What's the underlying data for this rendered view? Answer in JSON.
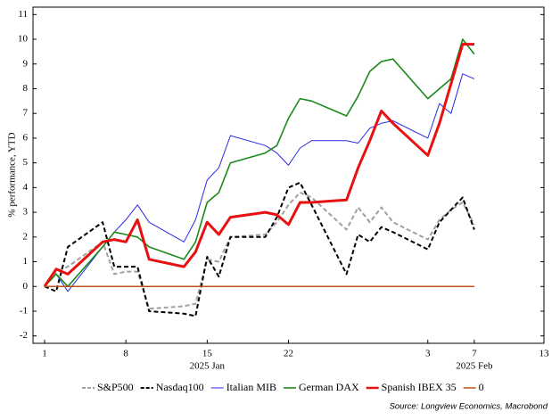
{
  "chart_data": {
    "type": "line",
    "ylabel": "% performance, YTD",
    "source": "Source: Longview Economics, Macrobond",
    "x": [
      1,
      2,
      3,
      6,
      7,
      8,
      9,
      10,
      13,
      14,
      15,
      16,
      17,
      20,
      21,
      22,
      23,
      24,
      27,
      28,
      29,
      30,
      31,
      34,
      35,
      36,
      37,
      38
    ],
    "xlim": [
      0,
      44
    ],
    "xticks": [
      1,
      8,
      15,
      22,
      {
        "value": 34,
        "label": "3"
      },
      {
        "value": 38,
        "label": "7"
      },
      {
        "value": 44,
        "label": "13"
      }
    ],
    "x_period_labels": [
      {
        "value": 15,
        "label": "2025 Jan"
      },
      {
        "value": 38,
        "label": "2025 Feb"
      }
    ],
    "ylim": [
      -2.3,
      11.3
    ],
    "yticks": [
      -2,
      -1,
      0,
      1,
      2,
      3,
      4,
      5,
      6,
      7,
      8,
      9,
      10,
      11
    ],
    "series": [
      {
        "name": "S&P500",
        "color": "#a0a0a0",
        "dashed": true,
        "linewidth": 2,
        "values": [
          0,
          0.6,
          0.8,
          1.8,
          0.5,
          0.6,
          0.6,
          -0.9,
          -0.8,
          -0.7,
          1.1,
          1.0,
          2.0,
          2.1,
          2.6,
          3.3,
          3.8,
          3.6,
          2.3,
          3.2,
          2.6,
          3.2,
          2.6,
          1.9,
          2.7,
          3.1,
          3.4,
          2.5
        ]
      },
      {
        "name": "Nasdaq100",
        "color": "#000000",
        "dashed": true,
        "linewidth": 2,
        "values": [
          0,
          -0.2,
          1.6,
          2.6,
          0.8,
          0.8,
          0.8,
          -1.0,
          -1.1,
          -1.2,
          1.2,
          0.4,
          2.0,
          2.0,
          2.8,
          4.0,
          4.2,
          3.3,
          0.5,
          2.1,
          1.8,
          2.4,
          2.2,
          1.5,
          2.6,
          3.1,
          3.6,
          2.3
        ]
      },
      {
        "name": "Italian MIB",
        "color": "#2a2ae8",
        "dashed": false,
        "linewidth": 1,
        "values": [
          0,
          0.5,
          -0.2,
          1.6,
          2.2,
          2.7,
          3.3,
          2.6,
          1.8,
          2.7,
          4.3,
          4.8,
          6.1,
          5.7,
          5.4,
          4.9,
          5.6,
          5.9,
          5.9,
          5.8,
          6.4,
          6.6,
          6.7,
          6.0,
          7.4,
          7.0,
          8.6,
          8.4
        ]
      },
      {
        "name": "German DAX",
        "color": "#1a8a1a",
        "dashed": false,
        "linewidth": 1.6,
        "values": [
          0,
          0.5,
          0,
          1.6,
          2.2,
          2.1,
          2.0,
          1.6,
          1.1,
          1.8,
          3.4,
          3.8,
          5.0,
          5.4,
          5.7,
          6.8,
          7.6,
          7.5,
          6.9,
          7.7,
          8.7,
          9.1,
          9.2,
          7.6,
          8.0,
          8.4,
          10.0,
          9.4
        ]
      },
      {
        "name": "Spanish IBEX 35",
        "color": "#e81010",
        "dashed": false,
        "linewidth": 3,
        "values": [
          0,
          0.7,
          0.5,
          1.8,
          1.9,
          1.8,
          2.7,
          1.1,
          0.8,
          1.4,
          2.6,
          2.1,
          2.8,
          3.0,
          2.9,
          2.5,
          3.4,
          3.4,
          3.5,
          4.8,
          5.9,
          7.1,
          6.6,
          5.3,
          6.6,
          8.2,
          9.8,
          9.8
        ]
      },
      {
        "name": "0",
        "color": "#c0501a",
        "dashed": false,
        "linewidth": 1.5,
        "values": [
          0,
          0,
          0,
          0,
          0,
          0,
          0,
          0,
          0,
          0,
          0,
          0,
          0,
          0,
          0,
          0,
          0,
          0,
          0,
          0,
          0,
          0,
          0,
          0,
          0,
          0,
          0,
          0
        ]
      }
    ]
  }
}
